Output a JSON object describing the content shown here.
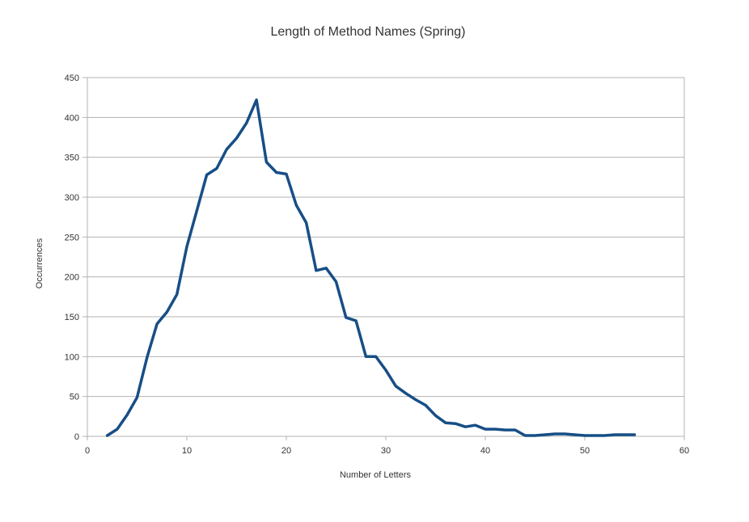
{
  "chart_data": {
    "type": "line",
    "title": "Length of Method Names (Spring)",
    "xlabel": "Number of Letters",
    "ylabel": "Occurrences",
    "xlim": [
      0,
      60
    ],
    "ylim": [
      0,
      450
    ],
    "xticks": [
      0,
      10,
      20,
      30,
      40,
      50,
      60
    ],
    "yticks": [
      0,
      50,
      100,
      150,
      200,
      250,
      300,
      350,
      400,
      450
    ],
    "grid": "horizontal",
    "legend": "none",
    "series": [
      {
        "color": "#174e86",
        "x": [
          2,
          3,
          4,
          5,
          6,
          7,
          8,
          9,
          10,
          11,
          12,
          13,
          14,
          15,
          16,
          17,
          18,
          19,
          20,
          21,
          22,
          23,
          24,
          25,
          26,
          27,
          28,
          29,
          30,
          31,
          32,
          33,
          34,
          35,
          36,
          37,
          38,
          39,
          40,
          41,
          42,
          43,
          44,
          45,
          46,
          47,
          48,
          49,
          50,
          51,
          52,
          53,
          54,
          55
        ],
        "y": [
          1,
          9,
          27,
          49,
          99,
          141,
          156,
          178,
          238,
          283,
          328,
          336,
          360,
          374,
          393,
          422,
          344,
          331,
          329,
          290,
          268,
          208,
          211,
          194,
          149,
          145,
          100,
          100,
          83,
          63,
          54,
          46,
          39,
          26,
          17,
          16,
          12,
          14,
          9,
          9,
          8,
          8,
          1,
          1,
          2,
          3,
          3,
          2,
          1,
          1,
          1,
          2,
          2,
          2
        ]
      }
    ]
  }
}
